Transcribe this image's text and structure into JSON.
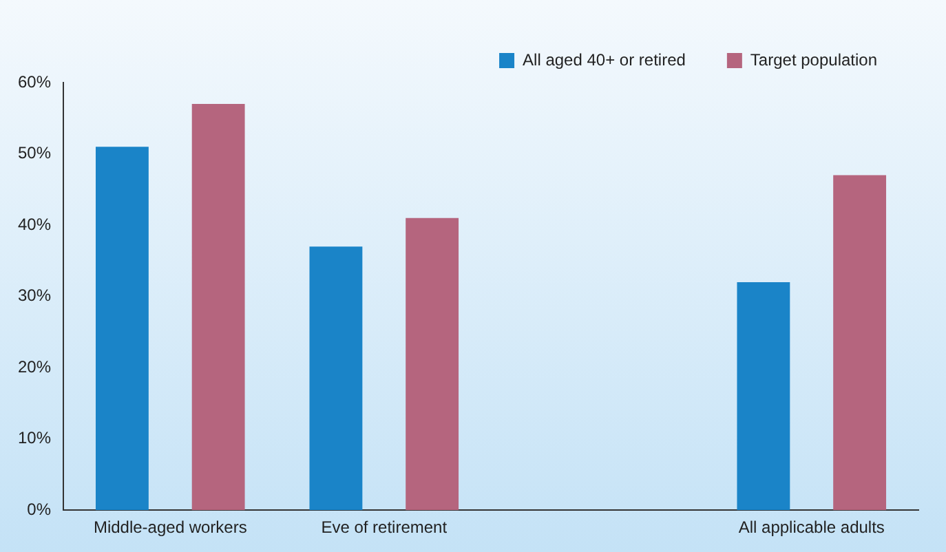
{
  "chart_data": {
    "type": "bar",
    "categories": [
      "Middle-aged workers",
      "Eve of retirement",
      null,
      "All applicable adults"
    ],
    "series": [
      {
        "name": "All aged 40+ or retired",
        "color": "#1a84c8",
        "values": [
          51,
          37,
          null,
          32
        ]
      },
      {
        "name": "Target population",
        "color": "#b5657e",
        "values": [
          57,
          41,
          null,
          47
        ]
      }
    ],
    "ylim": [
      0,
      60
    ],
    "yticks": [
      {
        "value": 0,
        "label": "0%"
      },
      {
        "value": 10,
        "label": "10%"
      },
      {
        "value": 20,
        "label": "20%"
      },
      {
        "value": 30,
        "label": "30%"
      },
      {
        "value": 40,
        "label": "40%"
      },
      {
        "value": 50,
        "label": "50%"
      },
      {
        "value": 60,
        "label": "60%"
      }
    ],
    "grid": false,
    "legend": "top right"
  }
}
